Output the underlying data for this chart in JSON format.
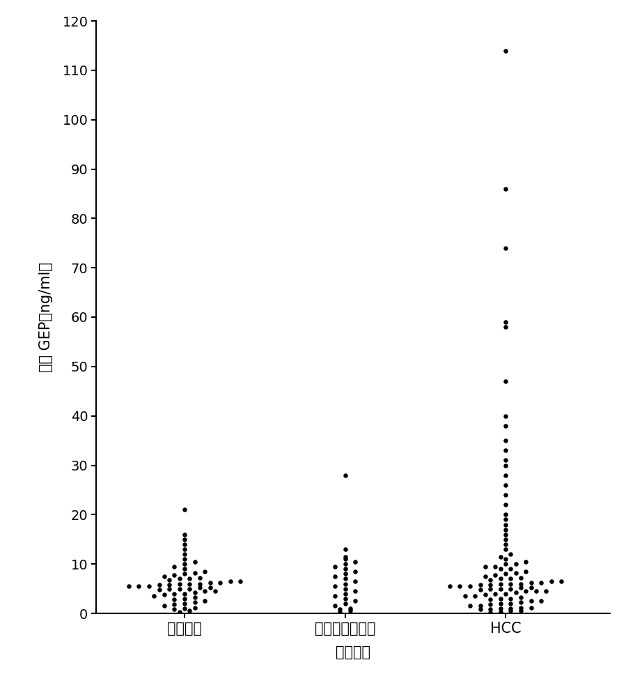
{
  "categories": [
    "健康个体",
    "乙型肆炎携带者",
    "HCC"
  ],
  "xlabel": "样品类型",
  "ylabel": "血清 GEP（ng/ml）",
  "ylim": [
    0,
    120
  ],
  "yticks": [
    0,
    10,
    20,
    30,
    40,
    50,
    60,
    70,
    80,
    90,
    100,
    110,
    120
  ],
  "dot_color": "#000000",
  "dot_size": 22,
  "background_color": "#ffffff",
  "group1_values": [
    0.3,
    0.5,
    0.8,
    1.0,
    1.2,
    1.5,
    1.8,
    2.0,
    2.2,
    2.5,
    2.8,
    3.0,
    3.2,
    3.5,
    3.8,
    4.0,
    4.0,
    4.2,
    4.5,
    4.5,
    4.8,
    5.0,
    5.0,
    5.0,
    5.2,
    5.2,
    5.5,
    5.5,
    5.5,
    5.8,
    5.8,
    6.0,
    6.0,
    6.0,
    6.2,
    6.2,
    6.5,
    6.5,
    6.8,
    7.0,
    7.0,
    7.2,
    7.5,
    7.8,
    8.0,
    8.2,
    8.5,
    9.0,
    9.5,
    10.0,
    10.5,
    11.0,
    12.0,
    13.0,
    14.0,
    15.0,
    16.0,
    21.0
  ],
  "group2_values": [
    0.3,
    0.5,
    0.8,
    1.0,
    1.5,
    2.0,
    2.5,
    3.0,
    3.5,
    4.0,
    4.5,
    5.0,
    5.5,
    6.0,
    6.5,
    7.0,
    7.5,
    8.0,
    8.5,
    9.0,
    9.5,
    10.0,
    10.5,
    11.0,
    11.5,
    13.0,
    28.0
  ],
  "group3_values": [
    0.2,
    0.3,
    0.5,
    0.5,
    0.8,
    0.8,
    1.0,
    1.0,
    1.2,
    1.2,
    1.5,
    1.5,
    1.8,
    2.0,
    2.0,
    2.2,
    2.5,
    2.5,
    2.8,
    3.0,
    3.0,
    3.2,
    3.5,
    3.5,
    3.8,
    4.0,
    4.0,
    4.2,
    4.5,
    4.5,
    4.5,
    4.8,
    5.0,
    5.0,
    5.0,
    5.2,
    5.2,
    5.5,
    5.5,
    5.5,
    5.8,
    5.8,
    6.0,
    6.0,
    6.0,
    6.2,
    6.2,
    6.5,
    6.5,
    6.8,
    7.0,
    7.0,
    7.2,
    7.5,
    7.8,
    8.0,
    8.2,
    8.5,
    9.0,
    9.0,
    9.5,
    9.5,
    10.0,
    10.0,
    10.5,
    11.0,
    11.5,
    12.0,
    13.0,
    14.0,
    15.0,
    16.0,
    17.0,
    18.0,
    19.0,
    20.0,
    22.0,
    24.0,
    26.0,
    28.0,
    30.0,
    31.0,
    33.0,
    35.0,
    38.0,
    40.0,
    47.0,
    58.0,
    59.0,
    74.0,
    86.0,
    114.0
  ]
}
